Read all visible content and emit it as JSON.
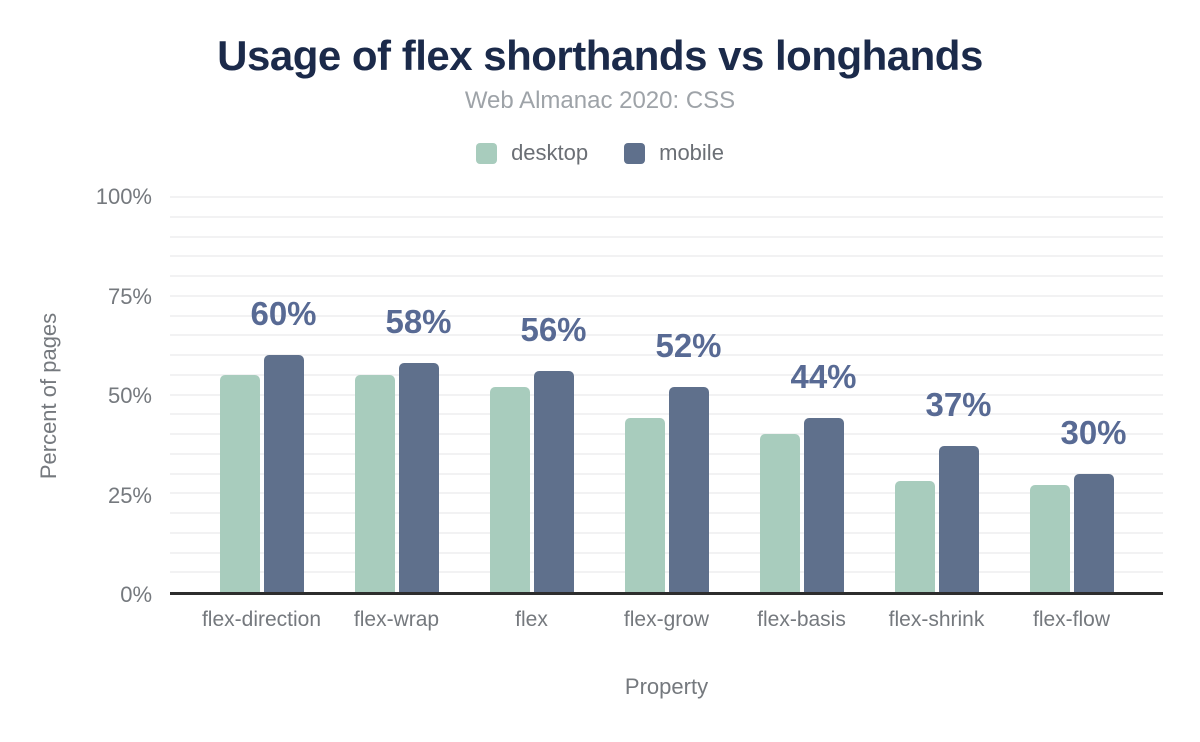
{
  "header": {
    "title": "Usage of flex shorthands vs longhands",
    "subtitle": "Web Almanac 2020: CSS"
  },
  "legend": {
    "desktop": "desktop",
    "mobile": "mobile"
  },
  "colors": {
    "title": "#1b2a4a",
    "desktop": "#a8ccbd",
    "mobile": "#5f708c",
    "data_label": "#586a94",
    "axis_text": "#75797e",
    "gridline": "#f2f2f3",
    "baseline": "#2d2d2d"
  },
  "chart_data": {
    "type": "bar",
    "title": "Usage of flex shorthands vs longhands",
    "subtitle": "Web Almanac 2020: CSS",
    "categories": [
      "flex-direction",
      "flex-wrap",
      "flex",
      "flex-grow",
      "flex-basis",
      "flex-shrink",
      "flex-flow"
    ],
    "series": [
      {
        "name": "desktop",
        "color": "#a8ccbd",
        "values": [
          55,
          55,
          52,
          44,
          40,
          28,
          27
        ]
      },
      {
        "name": "mobile",
        "color": "#5f708c",
        "values": [
          60,
          58,
          56,
          52,
          44,
          37,
          30
        ]
      }
    ],
    "data_labels": [
      "60%",
      "58%",
      "56%",
      "52%",
      "44%",
      "37%",
      "30%"
    ],
    "data_label_series": "mobile",
    "xlabel": "Property",
    "ylabel": "Percent of pages",
    "ylim": [
      0,
      100
    ],
    "y_ticks": [
      {
        "value": 0,
        "label": "0%"
      },
      {
        "value": 25,
        "label": "25%"
      },
      {
        "value": 50,
        "label": "50%"
      },
      {
        "value": 75,
        "label": "75%"
      },
      {
        "value": 100,
        "label": "100%"
      }
    ],
    "grid_step": 5,
    "grid": "on",
    "legend_position": "top"
  }
}
